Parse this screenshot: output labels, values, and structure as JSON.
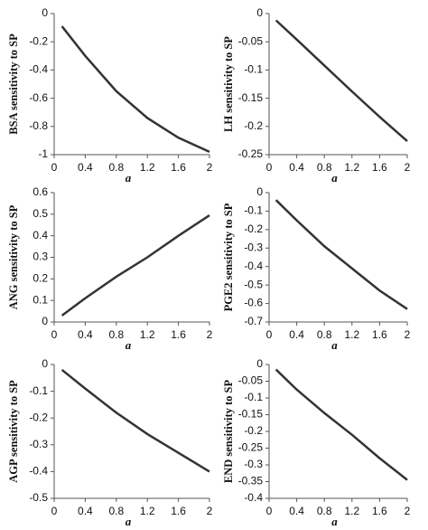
{
  "chart_data": [
    {
      "type": "line",
      "ylabel": "BSA sensitivity to SP",
      "xlabel": "a",
      "color": "#333333",
      "x": [
        0.1,
        0.4,
        0.8,
        1.2,
        1.6,
        2.0
      ],
      "values": [
        -0.09,
        -0.3,
        -0.55,
        -0.74,
        -0.88,
        -0.98
      ],
      "xlim": [
        0,
        2
      ],
      "xticks": [
        0,
        0.4,
        0.8,
        1.2,
        1.6,
        2
      ],
      "ylim": [
        -1,
        0
      ],
      "yticks": [
        0,
        -0.2,
        -0.4,
        -0.6,
        -0.8,
        -1
      ]
    },
    {
      "type": "line",
      "ylabel": "LH sensitivity to SP",
      "xlabel": "a",
      "color": "#333333",
      "x": [
        0.1,
        0.4,
        0.8,
        1.2,
        1.6,
        2.0
      ],
      "values": [
        -0.012,
        -0.046,
        -0.092,
        -0.138,
        -0.183,
        -0.226
      ],
      "xlim": [
        0,
        2
      ],
      "xticks": [
        0,
        0.4,
        0.8,
        1.2,
        1.6,
        2
      ],
      "ylim": [
        -0.25,
        0
      ],
      "yticks": [
        0,
        -0.05,
        -0.1,
        -0.15,
        -0.2,
        -0.25
      ]
    },
    {
      "type": "line",
      "ylabel": "ANG sensitivity to SP",
      "xlabel": "a",
      "color": "#333333",
      "x": [
        0.1,
        0.4,
        0.8,
        1.2,
        1.6,
        2.0
      ],
      "values": [
        0.03,
        0.11,
        0.21,
        0.3,
        0.4,
        0.495
      ],
      "xlim": [
        0,
        2
      ],
      "xticks": [
        0,
        0.4,
        0.8,
        1.2,
        1.6,
        2
      ],
      "ylim": [
        0,
        0.6
      ],
      "yticks": [
        0,
        0.1,
        0.2,
        0.3,
        0.4,
        0.5,
        0.6
      ]
    },
    {
      "type": "line",
      "ylabel": "PGE2 sensitivity to SP",
      "xlabel": "a",
      "color": "#333333",
      "x": [
        0.1,
        0.4,
        0.8,
        1.2,
        1.6,
        2.0
      ],
      "values": [
        -0.04,
        -0.15,
        -0.29,
        -0.41,
        -0.53,
        -0.63
      ],
      "xlim": [
        0,
        2
      ],
      "xticks": [
        0,
        0.4,
        0.8,
        1.2,
        1.6,
        2
      ],
      "ylim": [
        -0.7,
        0
      ],
      "yticks": [
        0,
        -0.1,
        -0.2,
        -0.3,
        -0.4,
        -0.5,
        -0.6,
        -0.7
      ]
    },
    {
      "type": "line",
      "ylabel": "AGP sensitivity to SP",
      "xlabel": "a",
      "color": "#333333",
      "x": [
        0.1,
        0.4,
        0.8,
        1.2,
        1.6,
        2.0
      ],
      "values": [
        -0.02,
        -0.09,
        -0.18,
        -0.26,
        -0.33,
        -0.4
      ],
      "xlim": [
        0,
        2
      ],
      "xticks": [
        0,
        0.4,
        0.8,
        1.2,
        1.6,
        2
      ],
      "ylim": [
        -0.5,
        0
      ],
      "yticks": [
        0,
        -0.1,
        -0.2,
        -0.3,
        -0.4,
        -0.5
      ]
    },
    {
      "type": "line",
      "ylabel": "END sensitivity to SP",
      "xlabel": "a",
      "color": "#333333",
      "x": [
        0.1,
        0.4,
        0.8,
        1.2,
        1.6,
        2.0
      ],
      "values": [
        -0.015,
        -0.075,
        -0.145,
        -0.21,
        -0.28,
        -0.345
      ],
      "xlim": [
        0,
        2
      ],
      "xticks": [
        0,
        0.4,
        0.8,
        1.2,
        1.6,
        2
      ],
      "ylim": [
        -0.4,
        0
      ],
      "yticks": [
        0,
        -0.05,
        -0.1,
        -0.15,
        -0.2,
        -0.25,
        -0.3,
        -0.35,
        -0.4
      ]
    }
  ]
}
